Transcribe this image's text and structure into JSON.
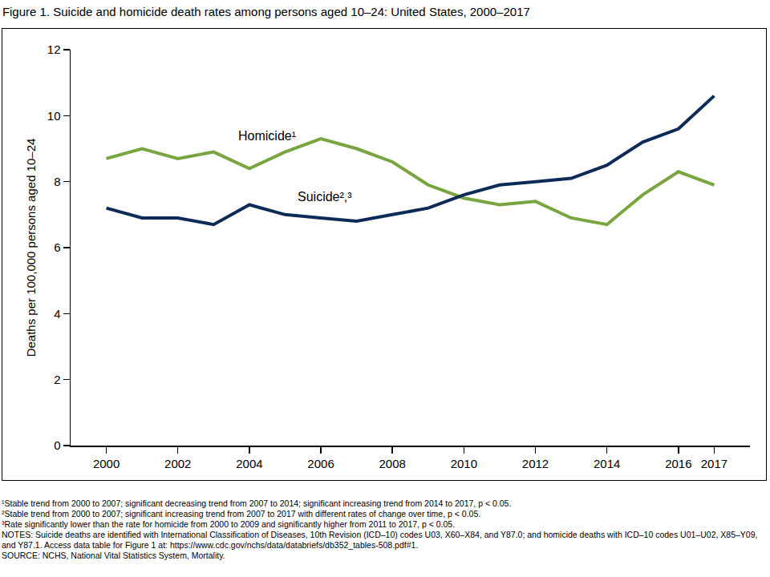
{
  "chart_data": {
    "type": "line",
    "title": "Figure 1. Suicide and homicide death rates among persons aged 10–24: United States, 2000–2017",
    "y_label": "Deaths per 100,000 persons aged 10–24",
    "x": [
      2000,
      2001,
      2002,
      2003,
      2004,
      2005,
      2006,
      2007,
      2008,
      2009,
      2010,
      2011,
      2012,
      2013,
      2014,
      2015,
      2016,
      2017
    ],
    "series": [
      {
        "name": "Homicide",
        "color": "#78a540",
        "values": [
          8.7,
          9.0,
          8.7,
          8.9,
          8.4,
          8.9,
          9.3,
          9.0,
          8.6,
          7.9,
          7.5,
          7.3,
          7.4,
          6.9,
          6.7,
          7.6,
          8.3,
          7.9
        ]
      },
      {
        "name": "Suicide",
        "color": "#0d2b57",
        "values": [
          7.2,
          6.9,
          6.9,
          6.7,
          7.3,
          7.0,
          6.9,
          6.8,
          7.0,
          7.2,
          7.6,
          7.9,
          8.0,
          8.1,
          8.5,
          9.2,
          9.6,
          10.6
        ]
      }
    ],
    "xlim": [
      1999,
      2018
    ],
    "xticks": [
      2000,
      2002,
      2004,
      2006,
      2008,
      2010,
      2012,
      2014,
      2016,
      2017
    ],
    "ylim": [
      0,
      12
    ],
    "yticks": [
      0,
      2,
      4,
      6,
      8,
      10,
      12
    ],
    "grid": false,
    "annotations": [
      {
        "text": "Homicide¹",
        "x": 2004.5,
        "y": 9.4
      },
      {
        "text": "Suicide²,³",
        "x": 2006.1,
        "y": 7.55
      }
    ],
    "notes": [
      "¹Stable trend from 2000 to 2007; significant decreasing trend from 2007 to 2014; significant increasing trend from 2014 to 2017, p < 0.05.",
      "²Stable trend from 2000 to 2007; significant increasing trend from 2007 to 2017 with different rates of change over time, p < 0.05.",
      "³Rate significantly lower than the rate for homicide from 2000 to 2009 and significantly higher from 2011 to 2017, p < 0.05.",
      "NOTES: Suicide deaths are identified with International Classification of Diseases, 10th Revision (ICD–10) codes U03, X60–X84, and Y87.0; and homicide deaths with ICD–10 codes U01–U02, X85–Y09, and Y87.1. Access data table for Figure 1 at: https://www.cdc.gov/nchs/data/databriefs/db352_tables-508.pdf#1.",
      "SOURCE: NCHS, National Vital Statistics System, Mortality."
    ]
  }
}
